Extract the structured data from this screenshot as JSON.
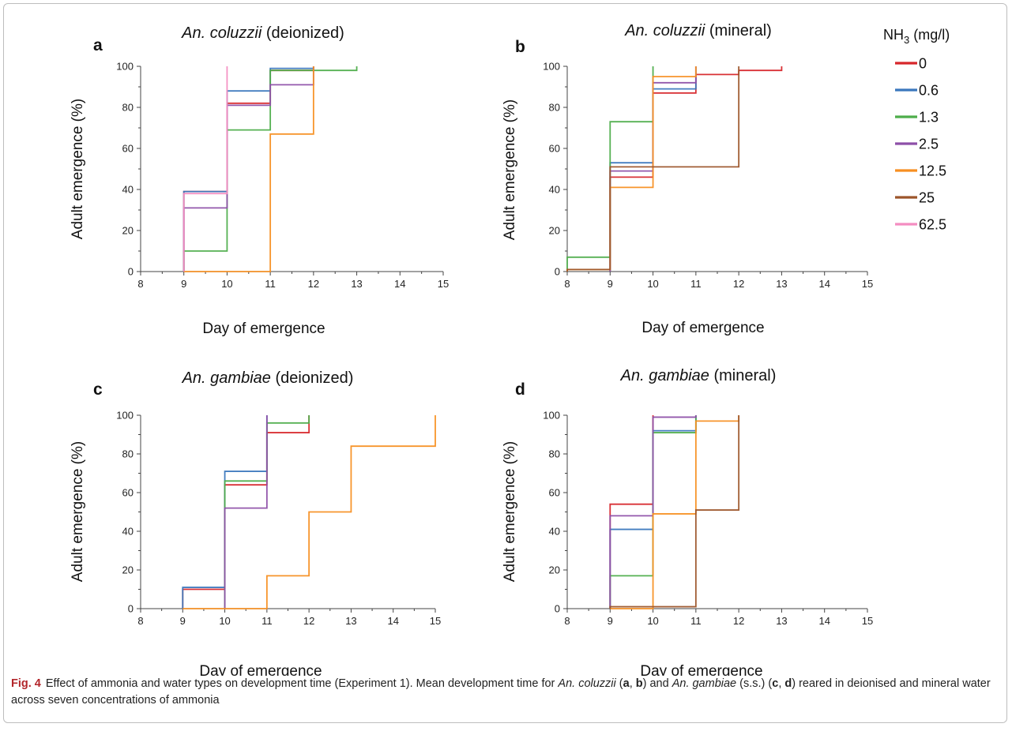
{
  "figure": {
    "label": "Fig. 4",
    "caption_html": "Effect of ammonia and water types on development time (Experiment 1). Mean development time for <i>An. coluzzii</i> (<b>a</b>, <b>b</b>) and <i>An. gambiae</i> (s.s.) (<b>c</b>, <b>d</b>) reared in deionised and mineral water across seven concentrations of ammonia"
  },
  "legend": {
    "title_prefix": "NH",
    "title_sub": "3",
    "title_suffix": " (mg/l)",
    "entries": [
      {
        "label": "0",
        "color": "#d7262b"
      },
      {
        "label": "0.6",
        "color": "#3a77bd"
      },
      {
        "label": "1.3",
        "color": "#4dad4a"
      },
      {
        "label": "2.5",
        "color": "#8d4fa8"
      },
      {
        "label": "12.5",
        "color": "#f78f21"
      },
      {
        "label": "25",
        "color": "#9c552a"
      },
      {
        "label": "62.5",
        "color": "#f48dc1"
      }
    ]
  },
  "chart_data": [
    {
      "type": "line",
      "step": true,
      "letter": "a",
      "title_species": "An. coluzzii",
      "title_water": " (deionized)",
      "xlabel": "Day of emergence",
      "ylabel": "Adult emergence (%)",
      "xlim": [
        8,
        15
      ],
      "ylim": [
        0,
        100
      ],
      "xticks": [
        8,
        9,
        10,
        11,
        12,
        13,
        14,
        15
      ],
      "yticks": [
        0,
        20,
        40,
        60,
        80,
        100
      ],
      "series": [
        {
          "name": "0",
          "color": "#d7262b",
          "x": [
            9,
            10,
            11,
            12
          ],
          "y": [
            39,
            82,
            98,
            100
          ]
        },
        {
          "name": "0.6",
          "color": "#3a77bd",
          "x": [
            9,
            10,
            11,
            12
          ],
          "y": [
            39,
            88,
            99,
            100
          ]
        },
        {
          "name": "1.3",
          "color": "#4dad4a",
          "x": [
            9,
            10,
            11,
            13
          ],
          "y": [
            10,
            69,
            98,
            100
          ]
        },
        {
          "name": "2.5",
          "color": "#8d4fa8",
          "x": [
            9,
            10,
            11,
            12
          ],
          "y": [
            31,
            81,
            91,
            100
          ]
        },
        {
          "name": "12.5",
          "color": "#f78f21",
          "x": [
            9,
            11,
            12
          ],
          "y": [
            0,
            67,
            100
          ]
        },
        {
          "name": "62.5",
          "color": "#f48dc1",
          "x": [
            9,
            10
          ],
          "y": [
            38,
            100
          ]
        }
      ]
    },
    {
      "type": "line",
      "step": true,
      "letter": "b",
      "title_species": "An. coluzzii",
      "title_water": " (mineral)",
      "xlabel": "Day of emergence",
      "ylabel": "Adult emergence (%)",
      "xlim": [
        8,
        15
      ],
      "ylim": [
        0,
        100
      ],
      "xticks": [
        8,
        9,
        10,
        11,
        12,
        13,
        14,
        15
      ],
      "yticks": [
        0,
        20,
        40,
        60,
        80,
        100
      ],
      "series": [
        {
          "name": "0",
          "color": "#d7262b",
          "x": [
            9,
            10,
            11,
            12,
            13
          ],
          "y": [
            46,
            87,
            96,
            98,
            100
          ]
        },
        {
          "name": "0.6",
          "color": "#3a77bd",
          "x": [
            9,
            10,
            11
          ],
          "y": [
            53,
            89,
            100
          ]
        },
        {
          "name": "1.3",
          "color": "#4dad4a",
          "x": [
            8,
            9,
            10
          ],
          "y": [
            7,
            73,
            100
          ]
        },
        {
          "name": "2.5",
          "color": "#8d4fa8",
          "x": [
            9,
            10,
            11
          ],
          "y": [
            49,
            92,
            100
          ]
        },
        {
          "name": "12.5",
          "color": "#f78f21",
          "x": [
            8,
            9,
            10,
            11
          ],
          "y": [
            1,
            41,
            95,
            100
          ]
        },
        {
          "name": "25",
          "color": "#9c552a",
          "x": [
            8,
            9,
            12
          ],
          "y": [
            1,
            51,
            100
          ]
        }
      ]
    },
    {
      "type": "line",
      "step": true,
      "letter": "c",
      "title_species": "An. gambiae",
      "title_water": " (deionized)",
      "xlabel": "Day of emergence",
      "ylabel": "Adult emergence (%)",
      "xlim": [
        8,
        15
      ],
      "ylim": [
        0,
        100
      ],
      "xticks": [
        8,
        9,
        10,
        11,
        12,
        13,
        14,
        15
      ],
      "yticks": [
        0,
        20,
        40,
        60,
        80,
        100
      ],
      "series": [
        {
          "name": "0",
          "color": "#d7262b",
          "x": [
            9,
            10,
            11,
            12
          ],
          "y": [
            10,
            64,
            91,
            100
          ]
        },
        {
          "name": "0.6",
          "color": "#3a77bd",
          "x": [
            9,
            10,
            11
          ],
          "y": [
            11,
            71,
            100
          ]
        },
        {
          "name": "1.3",
          "color": "#4dad4a",
          "x": [
            10,
            11,
            12
          ],
          "y": [
            66,
            96,
            100
          ]
        },
        {
          "name": "2.5",
          "color": "#8d4fa8",
          "x": [
            10,
            11
          ],
          "y": [
            52,
            100
          ]
        },
        {
          "name": "12.5",
          "color": "#f78f21",
          "x": [
            9,
            11,
            12,
            13,
            15
          ],
          "y": [
            0,
            17,
            50,
            84,
            100
          ]
        }
      ]
    },
    {
      "type": "line",
      "step": true,
      "letter": "d",
      "title_species": "An. gambiae",
      "title_water": " (mineral)",
      "xlabel": "Day of emergence",
      "ylabel": "Adult emergence (%)",
      "xlim": [
        8,
        15
      ],
      "ylim": [
        0,
        100
      ],
      "xticks": [
        8,
        9,
        10,
        11,
        12,
        13,
        14,
        15
      ],
      "yticks": [
        0,
        20,
        40,
        60,
        80,
        100
      ],
      "series": [
        {
          "name": "0",
          "color": "#d7262b",
          "x": [
            9,
            10
          ],
          "y": [
            54,
            100
          ]
        },
        {
          "name": "0.6",
          "color": "#3a77bd",
          "x": [
            9,
            10,
            11
          ],
          "y": [
            41,
            92,
            100
          ]
        },
        {
          "name": "1.3",
          "color": "#4dad4a",
          "x": [
            9,
            10,
            11
          ],
          "y": [
            17,
            91,
            100
          ]
        },
        {
          "name": "2.5",
          "color": "#8d4fa8",
          "x": [
            9,
            10,
            11
          ],
          "y": [
            48,
            99,
            100
          ]
        },
        {
          "name": "12.5",
          "color": "#f78f21",
          "x": [
            9,
            10,
            11,
            12
          ],
          "y": [
            0,
            49,
            97,
            100
          ]
        },
        {
          "name": "25",
          "color": "#9c552a",
          "x": [
            9,
            11,
            12
          ],
          "y": [
            1,
            51,
            100
          ]
        }
      ]
    }
  ]
}
